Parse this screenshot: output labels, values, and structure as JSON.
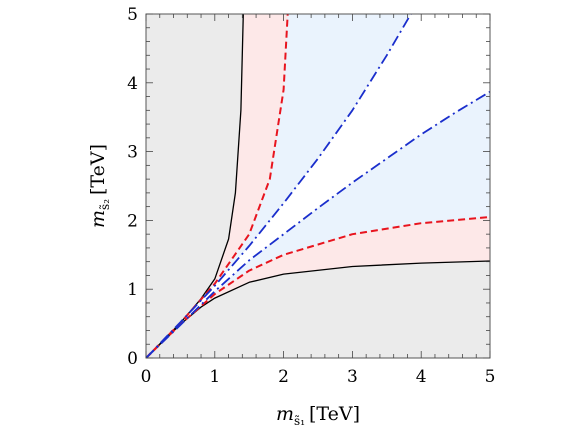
{
  "chart_data": {
    "type": "line",
    "title": "",
    "xlabel": {
      "symbol": "m",
      "subscript": "s̃₁",
      "unit": "[TeV]"
    },
    "ylabel": {
      "symbol": "m",
      "subscript": "s̃₂",
      "unit": "[TeV]"
    },
    "xlim": [
      0,
      5
    ],
    "ylim": [
      0,
      5
    ],
    "x_ticks": [
      "0",
      "1",
      "2",
      "3",
      "4",
      "5"
    ],
    "y_ticks": [
      "0",
      "1",
      "2",
      "3",
      "4",
      "5"
    ],
    "grid": false,
    "legend": "none",
    "colors": {
      "excluded": "#ebebeb",
      "pink_band": "#fde8e8",
      "blue_band": "#eaf3fd",
      "allowed": "#ffffff",
      "black_line": "#000000",
      "red_dash": "#e8141e",
      "blue_dashdot": "#1a2ecc"
    },
    "curves": [
      {
        "style": "solid-black",
        "branch": "upper",
        "x": [
          0,
          0.5,
          0.8,
          1.0,
          1.2,
          1.3,
          1.38,
          1.414
        ],
        "y": [
          0,
          0.51,
          0.86,
          1.15,
          1.73,
          2.4,
          3.6,
          5.0
        ]
      },
      {
        "style": "solid-black",
        "branch": "lower",
        "x": [
          0,
          0.5,
          0.8,
          1.0,
          1.5,
          2.0,
          3.0,
          4.0,
          5.0
        ],
        "y": [
          0,
          0.49,
          0.74,
          0.87,
          1.1,
          1.22,
          1.33,
          1.38,
          1.41
        ]
      },
      {
        "style": "dashed-red",
        "branch": "upper",
        "x": [
          0,
          0.5,
          1.0,
          1.5,
          1.8,
          2.0,
          2.06
        ],
        "y": [
          0,
          0.51,
          1.08,
          1.8,
          2.6,
          3.9,
          5.0
        ]
      },
      {
        "style": "dashed-red",
        "branch": "lower",
        "x": [
          0,
          0.5,
          1.0,
          1.5,
          2.0,
          3.0,
          4.0,
          5.0
        ],
        "y": [
          0,
          0.49,
          0.93,
          1.27,
          1.5,
          1.8,
          1.96,
          2.05
        ]
      },
      {
        "style": "dashdot-blue",
        "branch": "upper",
        "x": [
          0,
          0.5,
          1.0,
          1.5,
          2.0,
          2.5,
          3.0,
          3.5,
          3.85
        ],
        "y": [
          0,
          0.52,
          1.05,
          1.63,
          2.25,
          2.9,
          3.6,
          4.4,
          5.0
        ]
      },
      {
        "style": "dashdot-blue",
        "branch": "lower",
        "x": [
          0,
          0.5,
          1.0,
          1.5,
          2.0,
          2.5,
          3.0,
          3.5,
          4.0,
          4.5,
          5.0
        ],
        "y": [
          0,
          0.48,
          0.97,
          1.42,
          1.8,
          2.18,
          2.55,
          2.9,
          3.25,
          3.57,
          3.87
        ]
      }
    ]
  }
}
